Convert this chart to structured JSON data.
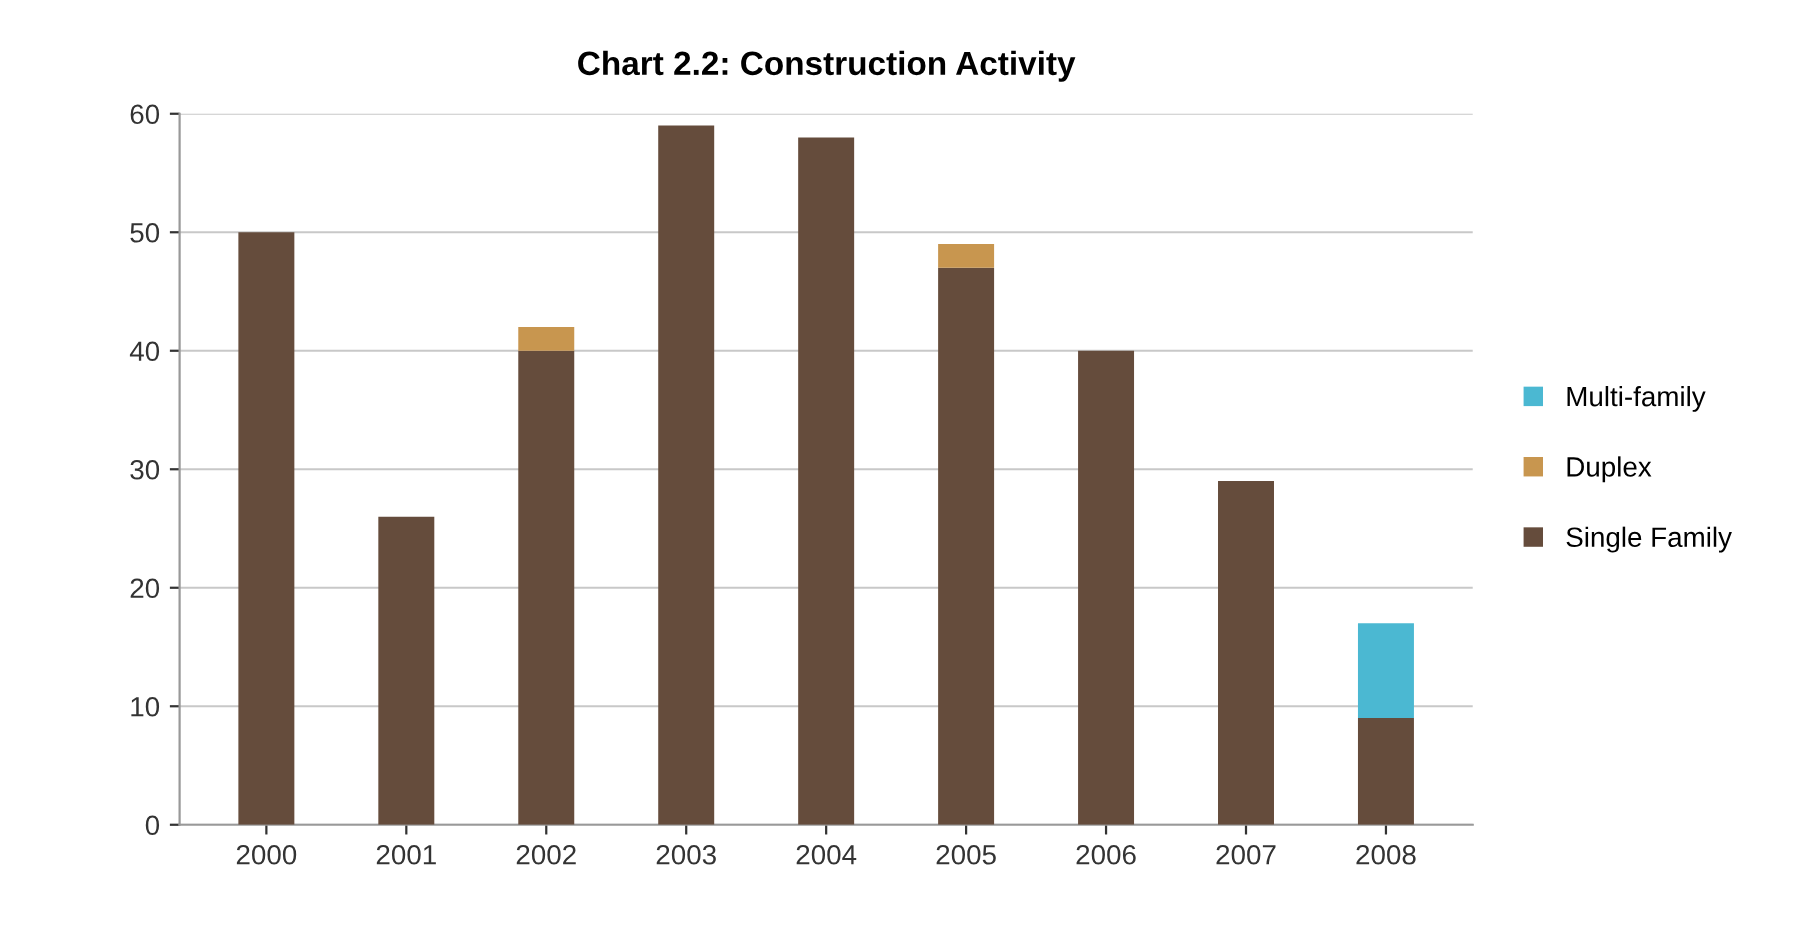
{
  "chart_data": {
    "type": "bar",
    "title": "Chart 2.2: Construction Activity",
    "categories": [
      "2000",
      "2001",
      "2002",
      "2003",
      "2004",
      "2005",
      "2006",
      "2007",
      "2008"
    ],
    "series": [
      {
        "name": "Single Family",
        "color": "#654c3c",
        "values": [
          50,
          26,
          40,
          59,
          58,
          47,
          40,
          29,
          9
        ]
      },
      {
        "name": "Duplex",
        "color": "#c8964f",
        "values": [
          0,
          0,
          2,
          0,
          0,
          2,
          0,
          0,
          0
        ]
      },
      {
        "name": "Multi-family",
        "color": "#4bb8d2",
        "values": [
          0,
          0,
          0,
          0,
          0,
          0,
          0,
          0,
          8
        ]
      }
    ],
    "stacked": true,
    "ylim": [
      0,
      60
    ],
    "yticks": [
      0,
      10,
      20,
      30,
      40,
      50,
      60
    ],
    "grid": "y",
    "legend": "right"
  }
}
